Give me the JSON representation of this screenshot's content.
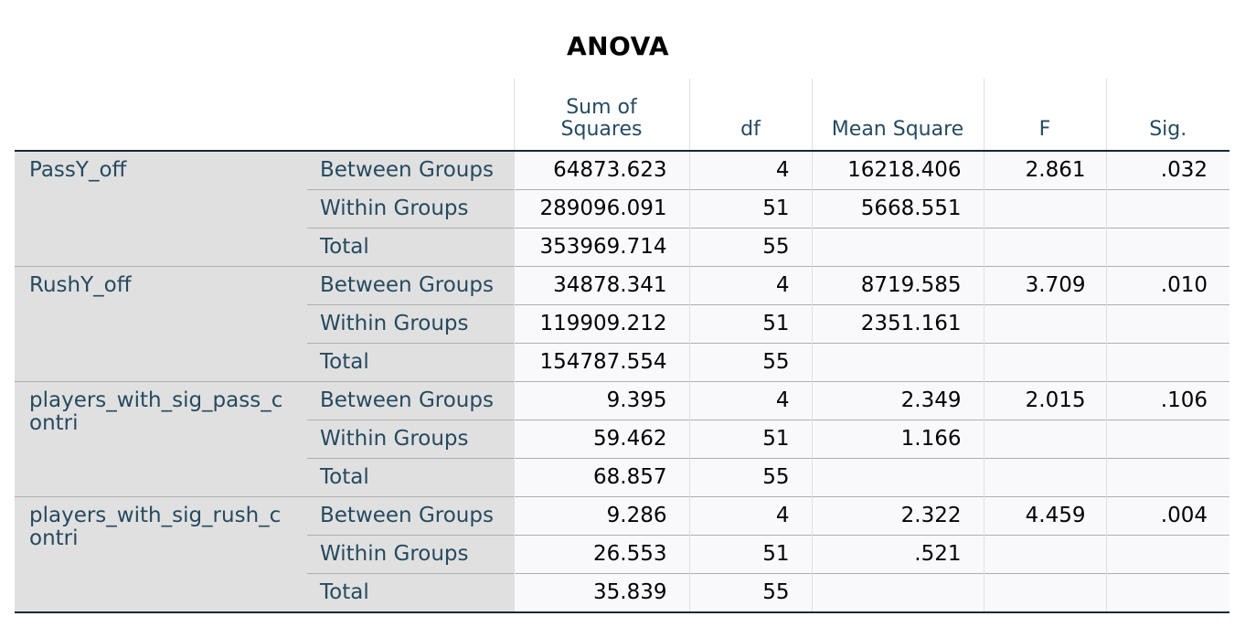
{
  "title": "ANOVA",
  "headers": {
    "sum_of_squares_line1": "Sum of",
    "sum_of_squares_line2": "Squares",
    "df": "df",
    "mean_square": "Mean Square",
    "f": "F",
    "sig": "Sig."
  },
  "groups": [
    {
      "variable": "PassY_off",
      "rows": [
        {
          "source": "Between Groups",
          "ss": "64873.623",
          "df": "4",
          "ms": "16218.406",
          "f": "2.861",
          "sig": ".032"
        },
        {
          "source": "Within Groups",
          "ss": "289096.091",
          "df": "51",
          "ms": "5668.551",
          "f": "",
          "sig": ""
        },
        {
          "source": "Total",
          "ss": "353969.714",
          "df": "55",
          "ms": "",
          "f": "",
          "sig": ""
        }
      ]
    },
    {
      "variable": "RushY_off",
      "rows": [
        {
          "source": "Between Groups",
          "ss": "34878.341",
          "df": "4",
          "ms": "8719.585",
          "f": "3.709",
          "sig": ".010"
        },
        {
          "source": "Within Groups",
          "ss": "119909.212",
          "df": "51",
          "ms": "2351.161",
          "f": "",
          "sig": ""
        },
        {
          "source": "Total",
          "ss": "154787.554",
          "df": "55",
          "ms": "",
          "f": "",
          "sig": ""
        }
      ]
    },
    {
      "variable": "players_with_sig_pass_contri",
      "rows": [
        {
          "source": "Between Groups",
          "ss": "9.395",
          "df": "4",
          "ms": "2.349",
          "f": "2.015",
          "sig": ".106"
        },
        {
          "source": "Within Groups",
          "ss": "59.462",
          "df": "51",
          "ms": "1.166",
          "f": "",
          "sig": ""
        },
        {
          "source": "Total",
          "ss": "68.857",
          "df": "55",
          "ms": "",
          "f": "",
          "sig": ""
        }
      ]
    },
    {
      "variable": "players_with_sig_rush_contri",
      "rows": [
        {
          "source": "Between Groups",
          "ss": "9.286",
          "df": "4",
          "ms": "2.322",
          "f": "4.459",
          "sig": ".004"
        },
        {
          "source": "Within Groups",
          "ss": "26.553",
          "df": "51",
          "ms": ".521",
          "f": "",
          "sig": ""
        },
        {
          "source": "Total",
          "ss": "35.839",
          "df": "55",
          "ms": "",
          "f": "",
          "sig": ""
        }
      ]
    }
  ]
}
